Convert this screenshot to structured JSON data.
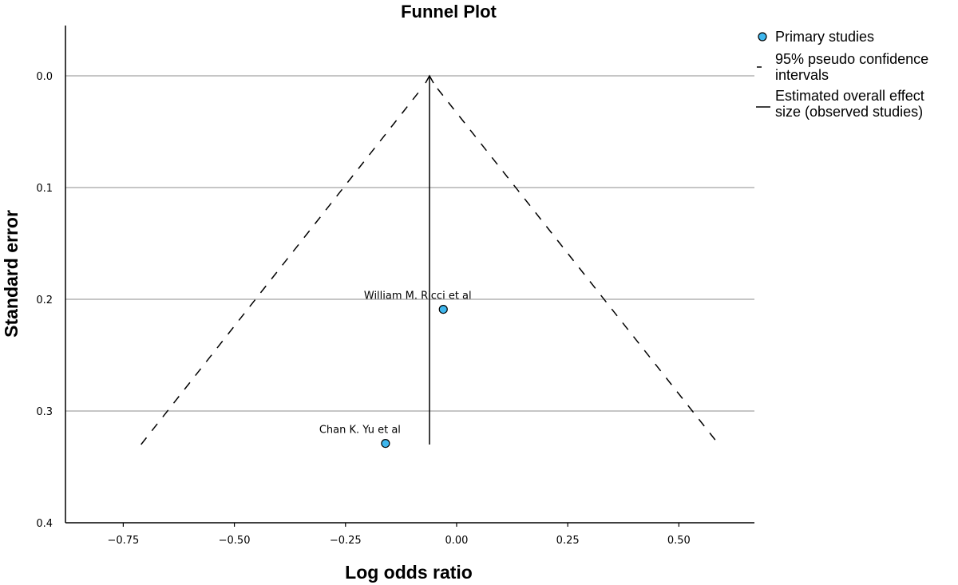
{
  "chart_data": {
    "type": "scatter",
    "title": "Funnel Plot",
    "xlabel": "Log odds ratio",
    "ylabel": "Standard error",
    "xlim": [
      -0.88,
      0.67
    ],
    "ylim": [
      0.4,
      -0.045
    ],
    "y_inverted": true,
    "xticks": [
      -0.75,
      -0.5,
      -0.25,
      0.0,
      0.25,
      0.5
    ],
    "xtick_labels": [
      "−0.75",
      "−0.50",
      "−0.25",
      "0.00",
      "0.25",
      "0.50"
    ],
    "yticks": [
      0.0,
      0.1,
      0.2,
      0.3,
      0.4
    ],
    "ytick_labels": [
      "0.0",
      "0.1",
      "0.2",
      "0.3",
      "0.4"
    ],
    "grid": "horizontal",
    "legend_placement": "top-right",
    "colors": {
      "points": "#3fb7ee",
      "lines": "#000000",
      "grid": "#b3b3b3"
    },
    "overall_effect": {
      "x": -0.061,
      "se_max": 0.33
    },
    "pseudo_ci": {
      "apex": [
        -0.061,
        0.0
      ],
      "left_base": [
        -0.71,
        0.33
      ],
      "right_base": [
        0.59,
        0.33
      ]
    },
    "points": [
      {
        "label": "William M. Ricci et al",
        "x": -0.03,
        "y": 0.209
      },
      {
        "label": "Chan K. Yu et al",
        "x": -0.16,
        "y": 0.329
      }
    ],
    "legend": [
      {
        "type": "marker",
        "lines": [
          "Primary studies"
        ]
      },
      {
        "type": "dashed",
        "lines": [
          "95% pseudo confidence",
          "intervals"
        ]
      },
      {
        "type": "solid",
        "lines": [
          "Estimated overall effect",
          "size (observed studies)"
        ]
      }
    ]
  }
}
